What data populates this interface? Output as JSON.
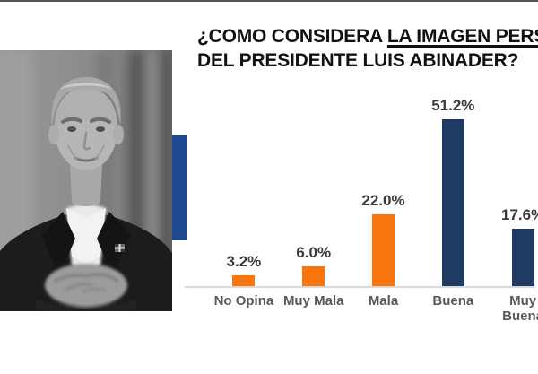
{
  "title": {
    "line1_prefix": "¿COMO CONSIDERA ",
    "line1_underlined": "LA IMAGEN PERSONAL",
    "line2": "DEL PRESIDENTE LUIS ABINADER?"
  },
  "photo": {
    "name": "luis-abinader-portrait-grayscale"
  },
  "chart_data": {
    "type": "bar",
    "title": "¿COMO CONSIDERA LA IMAGEN PERSONAL DEL PRESIDENTE LUIS ABINADER?",
    "categories": [
      "No Opina",
      "Muy Mala",
      "Mala",
      "Buena",
      "Muy Buena"
    ],
    "values": [
      3.2,
      6.0,
      22.0,
      51.2,
      17.6
    ],
    "data_labels": [
      "3.2%",
      "6.0%",
      "22.0%",
      "51.2%",
      "17.6%"
    ],
    "bar_colors": [
      "#f9750d",
      "#f9750d",
      "#f9750d",
      "#1f3a63",
      "#1f3a63"
    ],
    "unit": "%",
    "ylim": [
      0,
      55
    ],
    "grid": false,
    "legend": false,
    "data_label_position": "above"
  },
  "colors": {
    "orange": "#f9750d",
    "navy": "#1f3a63",
    "blue_accent": "#1e4b8f",
    "axis_line": "#d8d8d8",
    "title_text": "#111111",
    "data_label_text": "#3a3a3a",
    "category_label_text": "#595959",
    "top_border": "#555555"
  }
}
